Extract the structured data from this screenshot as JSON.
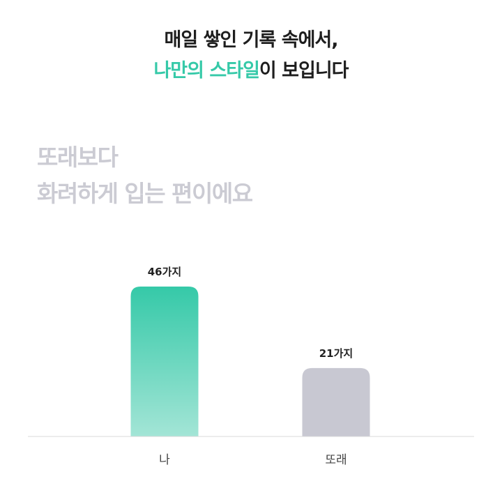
{
  "headline": {
    "line1": "매일 쌓인 기록 속에서,",
    "line2_accent": "나만의 스타일",
    "line2_rest": "이 보입니다"
  },
  "subhead": {
    "line1": "또래보다",
    "line2": "화려하게 입는 편이에요"
  },
  "colors": {
    "accent": "#35c9a8",
    "accent_light": "#a3e5d6",
    "bar_secondary": "#c8c8d2",
    "axis": "#d9d9d9",
    "subhead": "#cbcbd3"
  },
  "chart_data": {
    "type": "bar",
    "categories": [
      "나",
      "또래"
    ],
    "values": [
      46,
      21
    ],
    "value_labels": [
      "46가지",
      "21가지"
    ],
    "title": "",
    "xlabel": "",
    "ylabel": "",
    "ylim": [
      0,
      46
    ],
    "grid": false,
    "legend": "none"
  }
}
